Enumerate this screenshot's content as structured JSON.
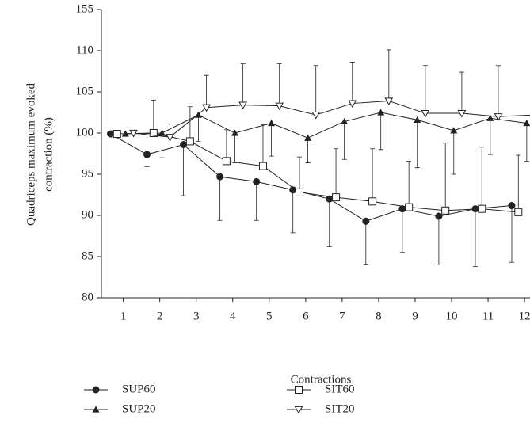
{
  "chart_data": {
    "type": "line",
    "ylabel": [
      "Quadriceps maximum evoked",
      "contraction (%)"
    ],
    "xlabel": "Contractions",
    "xlim": [
      0.4,
      12.15
    ],
    "xticks": [
      1,
      2,
      3,
      4,
      5,
      6,
      7,
      8,
      9,
      10,
      11,
      12
    ],
    "ylim": [
      80,
      155
    ],
    "ybreak": [
      110,
      155
    ],
    "yticks": [
      80,
      85,
      90,
      95,
      100,
      105,
      110,
      155
    ],
    "error_bars": true,
    "series": [
      {
        "name": "SUP60",
        "color": "#222222",
        "marker": "circle",
        "error_dir": "down",
        "x": [
          0.65,
          1.65,
          2.65,
          3.65,
          4.65,
          5.65,
          6.65,
          7.65,
          8.65,
          9.65,
          10.65,
          11.65
        ],
        "values": [
          99.9,
          97.4,
          98.6,
          94.7,
          94.1,
          93.1,
          92.0,
          89.3,
          90.8,
          89.9,
          90.8,
          91.2
        ],
        "errors": [
          null,
          1.5,
          6.2,
          5.3,
          4.7,
          5.2,
          5.8,
          5.2,
          5.3,
          5.9,
          7.0,
          6.9
        ]
      },
      {
        "name": "SUP20",
        "color": "#222222",
        "marker": "triangle",
        "error_dir": "down",
        "x": [
          1.06,
          2.06,
          3.06,
          4.06,
          5.06,
          6.06,
          7.06,
          8.06,
          9.06,
          10.06,
          11.06,
          12.06
        ],
        "values": [
          99.9,
          100.0,
          102.2,
          100.0,
          101.2,
          99.4,
          101.4,
          102.5,
          101.6,
          100.3,
          101.8,
          101.2
        ],
        "errors": [
          null,
          3.0,
          3.2,
          3.6,
          4.0,
          3.0,
          4.6,
          4.5,
          5.8,
          5.3,
          4.4,
          4.6
        ]
      },
      {
        "name": "SIT60",
        "color": "#222222",
        "marker": "square",
        "error_dir": "up",
        "x": [
          0.83,
          1.83,
          2.83,
          3.83,
          4.83,
          5.83,
          6.83,
          7.83,
          8.83,
          9.83,
          10.83,
          11.83
        ],
        "values": [
          99.9,
          100.0,
          99.0,
          96.6,
          96.0,
          92.8,
          92.2,
          91.7,
          91.0,
          90.6,
          90.8,
          90.4
        ],
        "errors": [
          null,
          4.0,
          4.2,
          3.8,
          5.0,
          4.3,
          5.9,
          6.4,
          5.6,
          8.2,
          7.5,
          6.9
        ]
      },
      {
        "name": "SIT20",
        "color": "#222222",
        "marker": "triangle-down",
        "error_dir": "up",
        "x": [
          1.28,
          2.28,
          3.28,
          4.28,
          5.28,
          6.28,
          7.28,
          8.28,
          9.28,
          10.28,
          11.28,
          12.28
        ],
        "values": [
          100.0,
          99.5,
          103.1,
          103.4,
          103.3,
          102.2,
          103.6,
          103.9,
          102.4,
          102.4,
          102.0,
          102.2
        ],
        "errors": [
          null,
          1.6,
          3.9,
          5.0,
          5.1,
          6.0,
          5.0,
          7.0,
          5.8,
          5.0,
          6.2,
          null
        ]
      }
    ]
  }
}
